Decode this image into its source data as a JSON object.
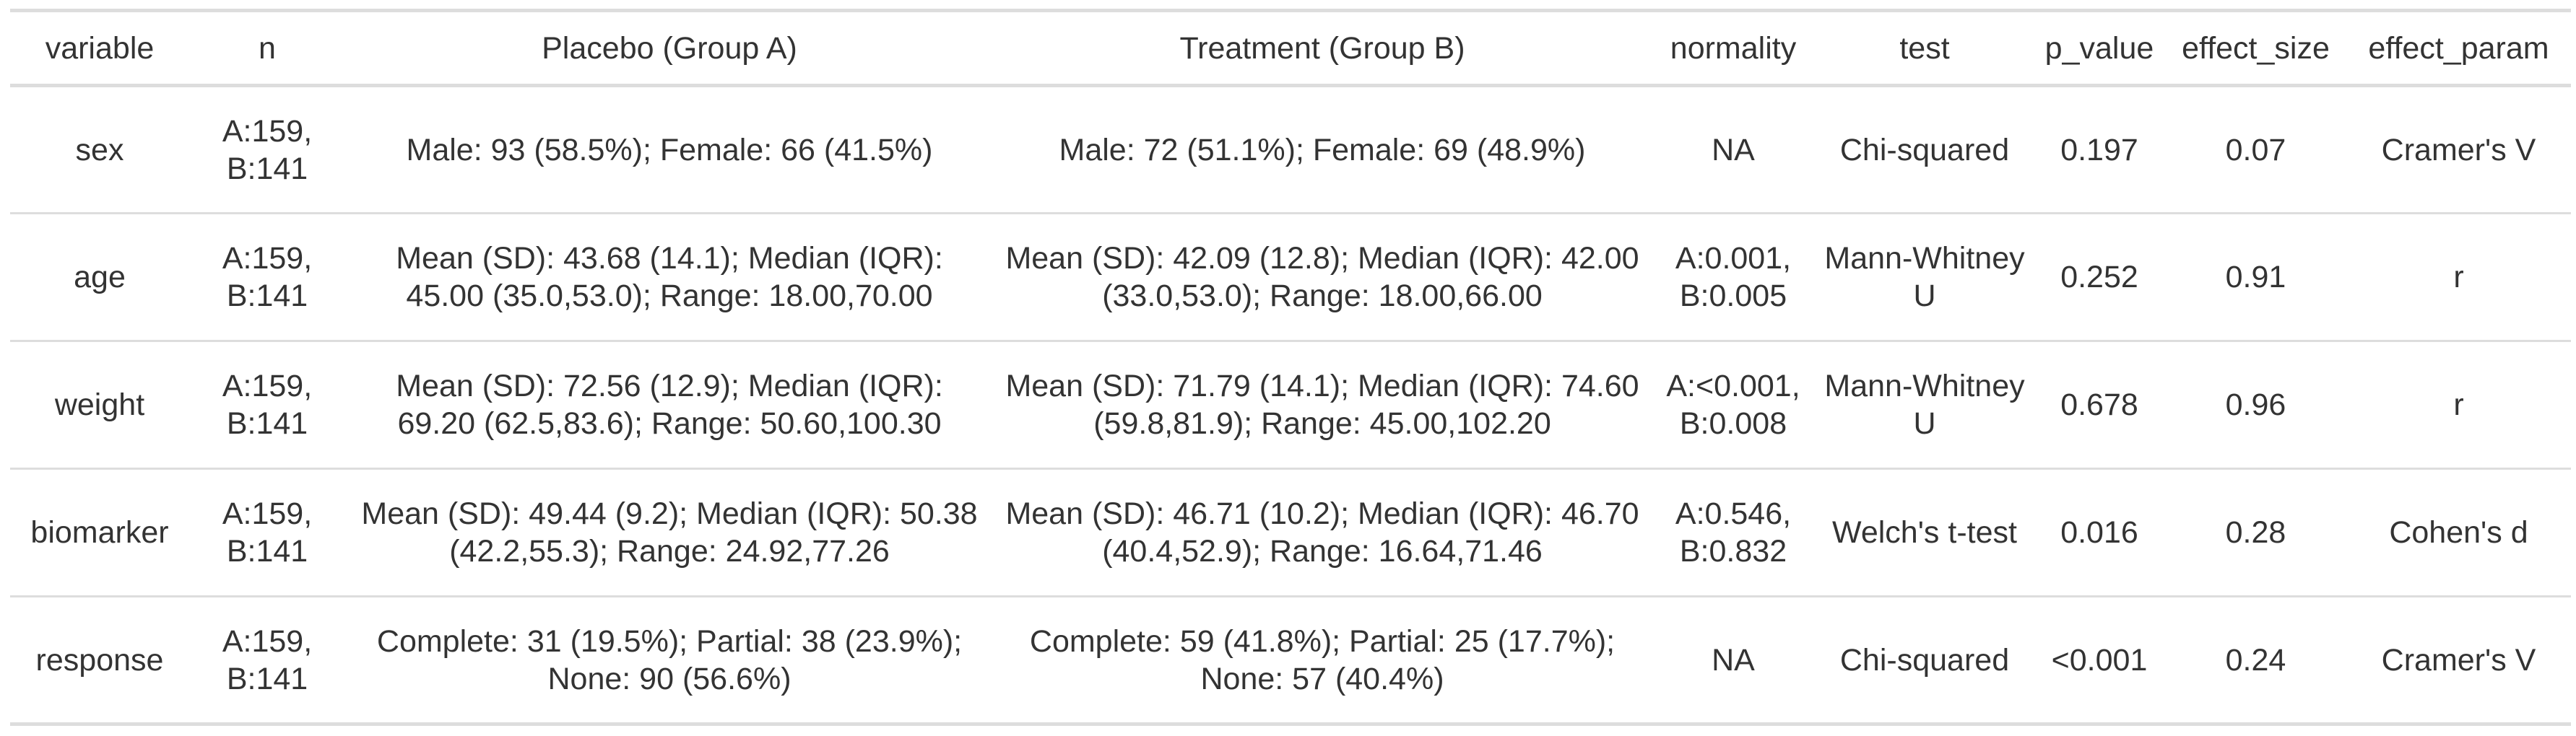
{
  "table": {
    "columns": [
      "variable",
      "n",
      "Placebo (Group A)",
      "Treatment (Group B)",
      "normality",
      "test",
      "p_value",
      "effect_size",
      "effect_param"
    ],
    "rows": [
      [
        "sex",
        "A:159, B:141",
        "Male: 93 (58.5%); Female: 66 (41.5%)",
        "Male: 72 (51.1%); Female: 69 (48.9%)",
        "NA",
        "Chi-squared",
        "0.197",
        "0.07",
        "Cramer's V"
      ],
      [
        "age",
        "A:159, B:141",
        "Mean (SD): 43.68 (14.1); Median (IQR): 45.00 (35.0,53.0); Range: 18.00,70.00",
        "Mean (SD): 42.09 (12.8); Median (IQR): 42.00 (33.0,53.0); Range: 18.00,66.00",
        "A:0.001, B:0.005",
        "Mann-Whitney U",
        "0.252",
        "0.91",
        "r"
      ],
      [
        "weight",
        "A:159, B:141",
        "Mean (SD): 72.56 (12.9); Median (IQR): 69.20 (62.5,83.6); Range: 50.60,100.30",
        "Mean (SD): 71.79 (14.1); Median (IQR): 74.60 (59.8,81.9); Range: 45.00,102.20",
        "A:<0.001, B:0.008",
        "Mann-Whitney U",
        "0.678",
        "0.96",
        "r"
      ],
      [
        "biomarker",
        "A:159, B:141",
        "Mean (SD): 49.44 (9.2); Median (IQR): 50.38 (42.2,55.3); Range: 24.92,77.26",
        "Mean (SD): 46.71 (10.2); Median (IQR): 46.70 (40.4,52.9); Range: 16.64,71.46",
        "A:0.546, B:0.832",
        "Welch's t-test",
        "0.016",
        "0.28",
        "Cohen's d"
      ],
      [
        "response",
        "A:159, B:141",
        "Complete: 31 (19.5%); Partial: 38 (23.9%); None: 90 (56.6%)",
        "Complete: 59 (41.8%); Partial: 25 (17.7%); None: 57 (40.4%)",
        "NA",
        "Chi-squared",
        "<0.001",
        "0.24",
        "Cramer's V"
      ]
    ]
  }
}
